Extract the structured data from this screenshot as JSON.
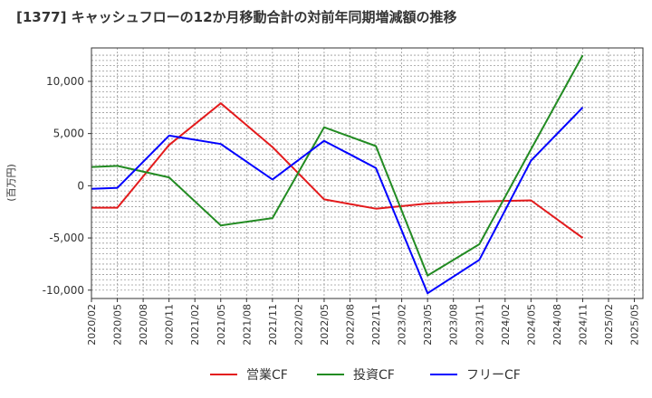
{
  "chart_data": {
    "type": "line",
    "title": "[1377]  キャッシュフローの12か月移動合計の対前年同期増減額の推移",
    "ylabel": "(百万円)",
    "xlabel": "",
    "categories": [
      "2020/02",
      "2020/05",
      "2020/08",
      "2020/11",
      "2021/02",
      "2021/05",
      "2021/08",
      "2021/11",
      "2022/02",
      "2022/05",
      "2022/08",
      "2022/11",
      "2023/02",
      "2023/05",
      "2023/08",
      "2023/11",
      "2024/02",
      "2024/05",
      "2024/08",
      "2024/11",
      "2025/02",
      "2025/05"
    ],
    "ylim": [
      -10800,
      13200
    ],
    "yticks": [
      -10000,
      -5000,
      0,
      5000,
      10000
    ],
    "ytick_labels": [
      "-10,000",
      "-5,000",
      "0",
      "5,000",
      "10,000"
    ],
    "grid": true,
    "legend_position": "bottom",
    "series": [
      {
        "name": "営業CF",
        "color": "#e31a1c",
        "points": [
          [
            "2020/02",
            -2100
          ],
          [
            "2020/05",
            -2100
          ],
          [
            "2020/11",
            3900
          ],
          [
            "2021/05",
            7900
          ],
          [
            "2021/11",
            3700
          ],
          [
            "2022/05",
            -1300
          ],
          [
            "2022/11",
            -2200
          ],
          [
            "2023/05",
            -1700
          ],
          [
            "2023/11",
            -1500
          ],
          [
            "2024/05",
            -1400
          ],
          [
            "2024/11",
            -5000
          ]
        ]
      },
      {
        "name": "投資CF",
        "color": "#228b22",
        "points": [
          [
            "2020/02",
            1800
          ],
          [
            "2020/05",
            1900
          ],
          [
            "2020/11",
            800
          ],
          [
            "2021/05",
            -3800
          ],
          [
            "2021/11",
            -3100
          ],
          [
            "2022/05",
            5600
          ],
          [
            "2022/11",
            3800
          ],
          [
            "2023/05",
            -8600
          ],
          [
            "2023/11",
            -5600
          ],
          [
            "2024/05",
            3500
          ],
          [
            "2024/11",
            12500
          ]
        ]
      },
      {
        "name": "フリーCF",
        "color": "#0000ff",
        "points": [
          [
            "2020/02",
            -300
          ],
          [
            "2020/05",
            -200
          ],
          [
            "2020/11",
            4800
          ],
          [
            "2021/05",
            4000
          ],
          [
            "2021/11",
            600
          ],
          [
            "2022/05",
            4300
          ],
          [
            "2022/11",
            1700
          ],
          [
            "2023/05",
            -10300
          ],
          [
            "2023/11",
            -7100
          ],
          [
            "2024/05",
            2400
          ],
          [
            "2024/11",
            7500
          ]
        ]
      }
    ]
  }
}
